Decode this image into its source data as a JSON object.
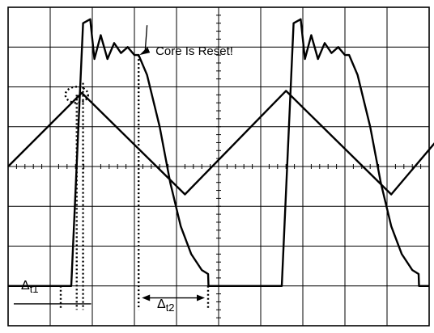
{
  "chart_data": {
    "type": "line",
    "title": "",
    "xlabel": "",
    "ylabel": "",
    "grid": true,
    "grid_divisions": {
      "x": 10,
      "y": 8
    },
    "xlim": [
      0,
      10
    ],
    "ylim": [
      -4,
      4
    ],
    "series": [
      {
        "x": [
          0,
          1.75,
          4.2,
          6.6,
          9.1,
          10.3
        ],
        "y": [
          0,
          1.85,
          -0.7,
          1.9,
          -0.7,
          0.8
        ]
      },
      {
        "x": [
          0,
          1.25,
          1.5,
          1.78,
          1.95,
          2.05,
          2.2,
          2.36,
          2.52,
          2.68,
          2.84,
          3.0,
          3.1,
          3.3,
          3.6,
          3.85,
          4.1,
          4.35,
          4.6,
          4.75,
          4.76,
          5.0,
          6.25,
          6.5,
          6.78,
          6.95,
          7.05,
          7.2,
          7.36,
          7.52,
          7.68,
          7.84,
          8.0,
          8.1,
          8.3,
          8.6,
          8.85,
          9.1,
          9.35,
          9.6,
          9.75,
          9.76,
          10
        ],
        "y": [
          -3,
          -3,
          -3,
          3.6,
          3.7,
          2.7,
          3.3,
          2.7,
          3.1,
          2.85,
          3.0,
          2.8,
          2.8,
          2.3,
          1.0,
          -0.4,
          -1.5,
          -2.2,
          -2.6,
          -2.7,
          -3,
          -3,
          -3,
          -3,
          3.6,
          3.7,
          2.7,
          3.3,
          2.7,
          3.1,
          2.85,
          3.0,
          2.8,
          2.8,
          2.3,
          1.0,
          -0.4,
          -1.5,
          -2.2,
          -2.6,
          -2.7,
          -3,
          -3
        ]
      }
    ],
    "markers": {
      "dotted_verticals_x": [
        1.25,
        1.63,
        1.78,
        3.1,
        4.75
      ],
      "t1": {
        "from_x": 1.25,
        "to_x": 1.78,
        "bar_y": -3.45
      },
      "t2": {
        "from_x": 3.1,
        "to_x": 4.75,
        "arrow_y": -3.3
      },
      "ellipse": {
        "x": 1.63,
        "y": 1.8
      },
      "reset_point": {
        "x": 3.1,
        "y": 2.8
      },
      "callout_pos": {
        "x": 3.3,
        "y": 3.55
      }
    },
    "annotations": {
      "reset": "Core Is Reset!",
      "t1_delta": "Δ",
      "t1_sub": "t1",
      "t2_delta": "Δ",
      "t2_sub": "t2"
    }
  }
}
